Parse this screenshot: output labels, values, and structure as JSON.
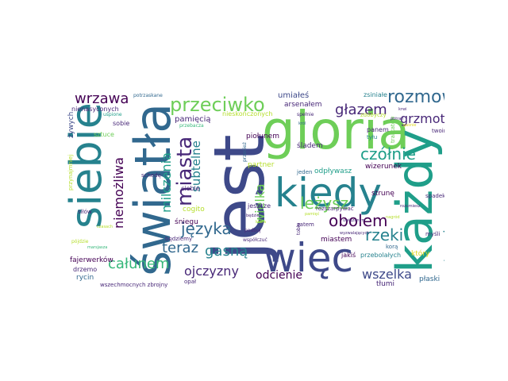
{
  "figure": {
    "type": "word cloud",
    "background": "#ffffff"
  },
  "words": {
    "gloria": "gloria",
    "jest": "jest",
    "kazdy": "każdy",
    "swiatla": "światła",
    "siebie": "siebie",
    "kiedy": "kiedy",
    "wiec": "więc",
    "przeciwko": "przeciwko",
    "miasta": "miasta",
    "rozmowa": "rozmowa",
    "wrzawa": "wrzawa",
    "czolnie": "czółnie",
    "jezyka": "języka",
    "obolem": "obolem",
    "rzeki": "rzeki",
    "stronie": "stronie",
    "lezysz": "leżysz",
    "glazem": "głazem",
    "grzmot": "grzmot",
    "teraz": "teraz",
    "gasna": "gasną",
    "calunem": "całunem",
    "ojczyzny": "ojczyzny",
    "odcienie": "odcienie",
    "wszelka": "wszelka",
    "niemozliwa": "niemożliwa",
    "milczenia": "milczenia",
    "subtelne": "subtelne",
    "wielka": "wielka",
    "pamiecia": "pamięcią",
    "umiales": "umiałeś",
    "fajerwerkow": "fajerwerków",
    "sladem": "śladem",
    "partner": "partner",
    "odplywasz": "odpływasz",
    "wizerunek": "wizerunek",
    "strune": "strunę",
    "tlumi": "tłumi",
    "ktory": "który",
    "nienasyconych": "nienasyconych",
    "zywych": "żywych",
    "piolunem": "piołunem",
    "arsenalem": "arsenałem",
    "zsiniale": "zsiniałe",
    "panem": "panem",
    "tylu": "tyłu",
    "twoim": "twoim",
    "spadek": "spadek",
    "jeszcze": "jeszcze",
    "rozszarpywac": "rozszarpywać",
    "miastem": "miastem",
    "mysli": "myśli",
    "korba": "korą",
    "jakis": "jakiś",
    "przebolalych": "przebolałych",
    "zatem": "zatem",
    "cogito": "cogito",
    "sniegu": "śniegu",
    "ciebie": "ciebie",
    "schede": "schedę",
    "silow": "siłów",
    "rycin": "rycin",
    "drzemo": "drzemo",
    "sobie": "sobie",
    "sztuce": "sztuce",
    "bedziemy": "będziemy",
    "plaski": "płaski",
    "opal": "opał",
    "potrzaskane": "potrzaskane",
    "uspione": "uśpione",
    "nieskonczonych": "nieskończonych",
    "przebacza": "przebacza",
    "spelnie": "spełnie",
    "zdobyczy": "zdobyczy",
    "przynajmniej": "przynajmniej",
    "traktatow": "traktatów",
    "wszechmocnych": "wszechmocnych zbrojny",
    "wspolczuc": "współczuć",
    "pojdzie": "pójdzie",
    "podbuj": "podbuj",
    "bedzie": "będzie",
    "ktora": "która",
    "jeden": "jeden",
    "przeciez": "przecież",
    "wyzwalajacych": "wyzwalających",
    "rozumiesz": "rozumiesz",
    "marsjasza": "marsjasza",
    "czasach": "czasach",
    "pamiec": "pamięć",
    "uwiazanym": "uwiązanym",
    "nagrod": "nagród",
    "potrafi": "potrafi",
    "gasnie": "gaśnie",
    "krwi": "krwi",
    "krol": "król",
    "tobie": "tobie"
  },
  "colors": {
    "purple": "#440154",
    "darkpurple": "#482878",
    "indigo": "#3e4989",
    "blue": "#31688e",
    "teal": "#26828e",
    "seagreen": "#1f9e89",
    "green": "#35b779",
    "lightgreen": "#6ece58",
    "lime": "#b5de2b",
    "yellow": "#e0d821"
  }
}
